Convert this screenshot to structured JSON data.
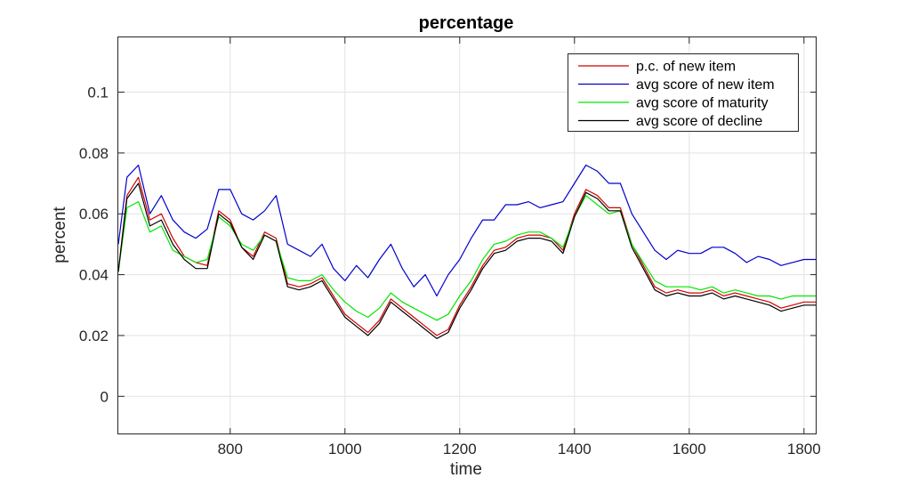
{
  "chart_data": {
    "type": "line",
    "title": "percentage",
    "xlabel": "time",
    "ylabel": "percent",
    "xlim": [
      605,
      1822
    ],
    "ylim": [
      -0.0125,
      0.118
    ],
    "xticks": [
      800,
      1000,
      1200,
      1400,
      1600,
      1800
    ],
    "yticks": [
      0,
      0.02,
      0.04,
      0.06,
      0.08,
      0.1
    ],
    "xtick_labels": [
      "800",
      "1000",
      "1200",
      "1400",
      "1600",
      "1800"
    ],
    "ytick_labels": [
      "0",
      "0.02",
      "0.04",
      "0.06",
      "0.08",
      "0.1"
    ],
    "grid": true,
    "legend_position": "top-right",
    "x": [
      605,
      620,
      640,
      660,
      680,
      700,
      720,
      740,
      760,
      780,
      800,
      820,
      840,
      860,
      880,
      900,
      920,
      940,
      960,
      980,
      1000,
      1020,
      1040,
      1060,
      1080,
      1100,
      1120,
      1140,
      1160,
      1180,
      1200,
      1220,
      1240,
      1260,
      1280,
      1300,
      1320,
      1340,
      1360,
      1380,
      1400,
      1420,
      1440,
      1460,
      1480,
      1500,
      1520,
      1540,
      1560,
      1580,
      1600,
      1620,
      1640,
      1660,
      1680,
      1700,
      1720,
      1740,
      1760,
      1780,
      1800,
      1822
    ],
    "series": [
      {
        "name": "p.c. of new item",
        "color": "#d40000",
        "values": [
          0.041,
          0.066,
          0.072,
          0.058,
          0.06,
          0.052,
          0.046,
          0.044,
          0.043,
          0.061,
          0.058,
          0.049,
          0.046,
          0.054,
          0.052,
          0.037,
          0.036,
          0.037,
          0.039,
          0.033,
          0.027,
          0.024,
          0.021,
          0.025,
          0.032,
          0.029,
          0.026,
          0.023,
          0.02,
          0.022,
          0.03,
          0.036,
          0.043,
          0.048,
          0.049,
          0.052,
          0.053,
          0.053,
          0.052,
          0.048,
          0.06,
          0.068,
          0.066,
          0.062,
          0.062,
          0.05,
          0.043,
          0.036,
          0.034,
          0.035,
          0.034,
          0.034,
          0.035,
          0.033,
          0.034,
          0.033,
          0.032,
          0.031,
          0.029,
          0.03,
          0.031,
          0.031
        ]
      },
      {
        "name": "avg score of new item",
        "color": "#0000cc",
        "values": [
          0.05,
          0.072,
          0.076,
          0.06,
          0.066,
          0.058,
          0.054,
          0.052,
          0.055,
          0.068,
          0.068,
          0.06,
          0.058,
          0.061,
          0.066,
          0.05,
          0.048,
          0.046,
          0.05,
          0.042,
          0.038,
          0.043,
          0.039,
          0.045,
          0.05,
          0.042,
          0.036,
          0.04,
          0.033,
          0.04,
          0.045,
          0.052,
          0.058,
          0.058,
          0.063,
          0.063,
          0.064,
          0.062,
          0.063,
          0.064,
          0.07,
          0.076,
          0.074,
          0.07,
          0.07,
          0.06,
          0.054,
          0.048,
          0.045,
          0.048,
          0.047,
          0.047,
          0.049,
          0.049,
          0.047,
          0.044,
          0.046,
          0.045,
          0.043,
          0.044,
          0.045,
          0.045
        ]
      },
      {
        "name": "avg score of maturity",
        "color": "#00e600",
        "values": [
          0.041,
          0.062,
          0.064,
          0.054,
          0.056,
          0.048,
          0.046,
          0.044,
          0.045,
          0.059,
          0.056,
          0.05,
          0.048,
          0.053,
          0.051,
          0.039,
          0.038,
          0.038,
          0.04,
          0.035,
          0.031,
          0.028,
          0.026,
          0.029,
          0.034,
          0.031,
          0.029,
          0.027,
          0.025,
          0.027,
          0.033,
          0.038,
          0.045,
          0.05,
          0.051,
          0.053,
          0.054,
          0.054,
          0.052,
          0.049,
          0.059,
          0.066,
          0.063,
          0.06,
          0.061,
          0.05,
          0.044,
          0.038,
          0.036,
          0.036,
          0.036,
          0.035,
          0.036,
          0.034,
          0.035,
          0.034,
          0.033,
          0.033,
          0.032,
          0.033,
          0.033,
          0.033
        ]
      },
      {
        "name": "avg score of decline",
        "color": "#000000",
        "values": [
          0.041,
          0.065,
          0.07,
          0.056,
          0.058,
          0.05,
          0.045,
          0.042,
          0.042,
          0.06,
          0.057,
          0.049,
          0.045,
          0.053,
          0.051,
          0.036,
          0.035,
          0.036,
          0.038,
          0.032,
          0.026,
          0.023,
          0.02,
          0.024,
          0.031,
          0.028,
          0.025,
          0.022,
          0.019,
          0.021,
          0.029,
          0.035,
          0.042,
          0.047,
          0.048,
          0.051,
          0.052,
          0.052,
          0.051,
          0.047,
          0.059,
          0.067,
          0.065,
          0.061,
          0.061,
          0.049,
          0.042,
          0.035,
          0.033,
          0.034,
          0.033,
          0.033,
          0.034,
          0.032,
          0.033,
          0.032,
          0.031,
          0.03,
          0.028,
          0.029,
          0.03,
          0.03
        ]
      }
    ]
  }
}
